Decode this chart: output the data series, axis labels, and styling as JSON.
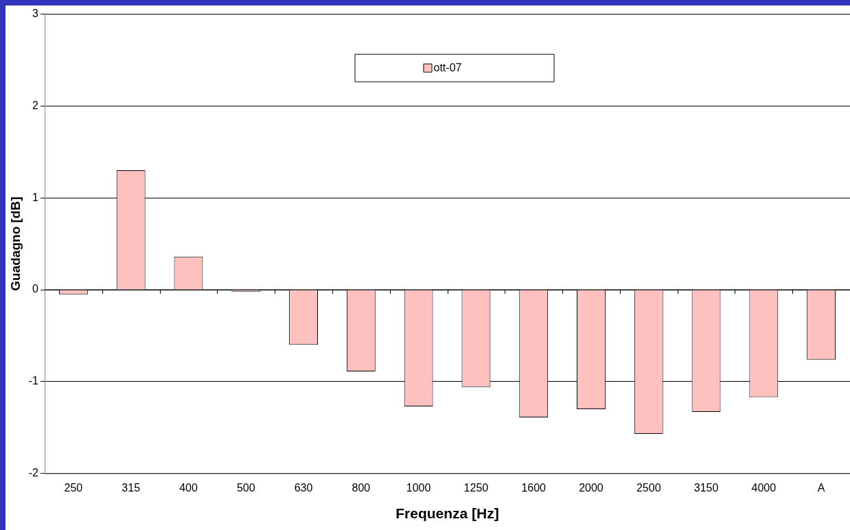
{
  "chart_data": {
    "type": "bar",
    "xlabel": "Frequenza [Hz]",
    "ylabel": "Guadagno [dB]",
    "categories": [
      "250",
      "315",
      "400",
      "500",
      "630",
      "800",
      "1000",
      "1250",
      "1600",
      "2000",
      "2500",
      "3150",
      "4000",
      "A"
    ],
    "series": [
      {
        "name": "ott-07",
        "color": "#ffc0c0",
        "values": [
          -0.05,
          1.3,
          0.36,
          -0.02,
          -0.6,
          -0.89,
          -1.27,
          -1.06,
          -1.39,
          -1.3,
          -1.57,
          -1.33,
          -1.17,
          -0.76
        ]
      }
    ],
    "ylim": [
      -2,
      3
    ],
    "yticks": [
      -2,
      -1,
      0,
      1,
      2,
      3
    ],
    "grid": "y",
    "legend": "top"
  }
}
